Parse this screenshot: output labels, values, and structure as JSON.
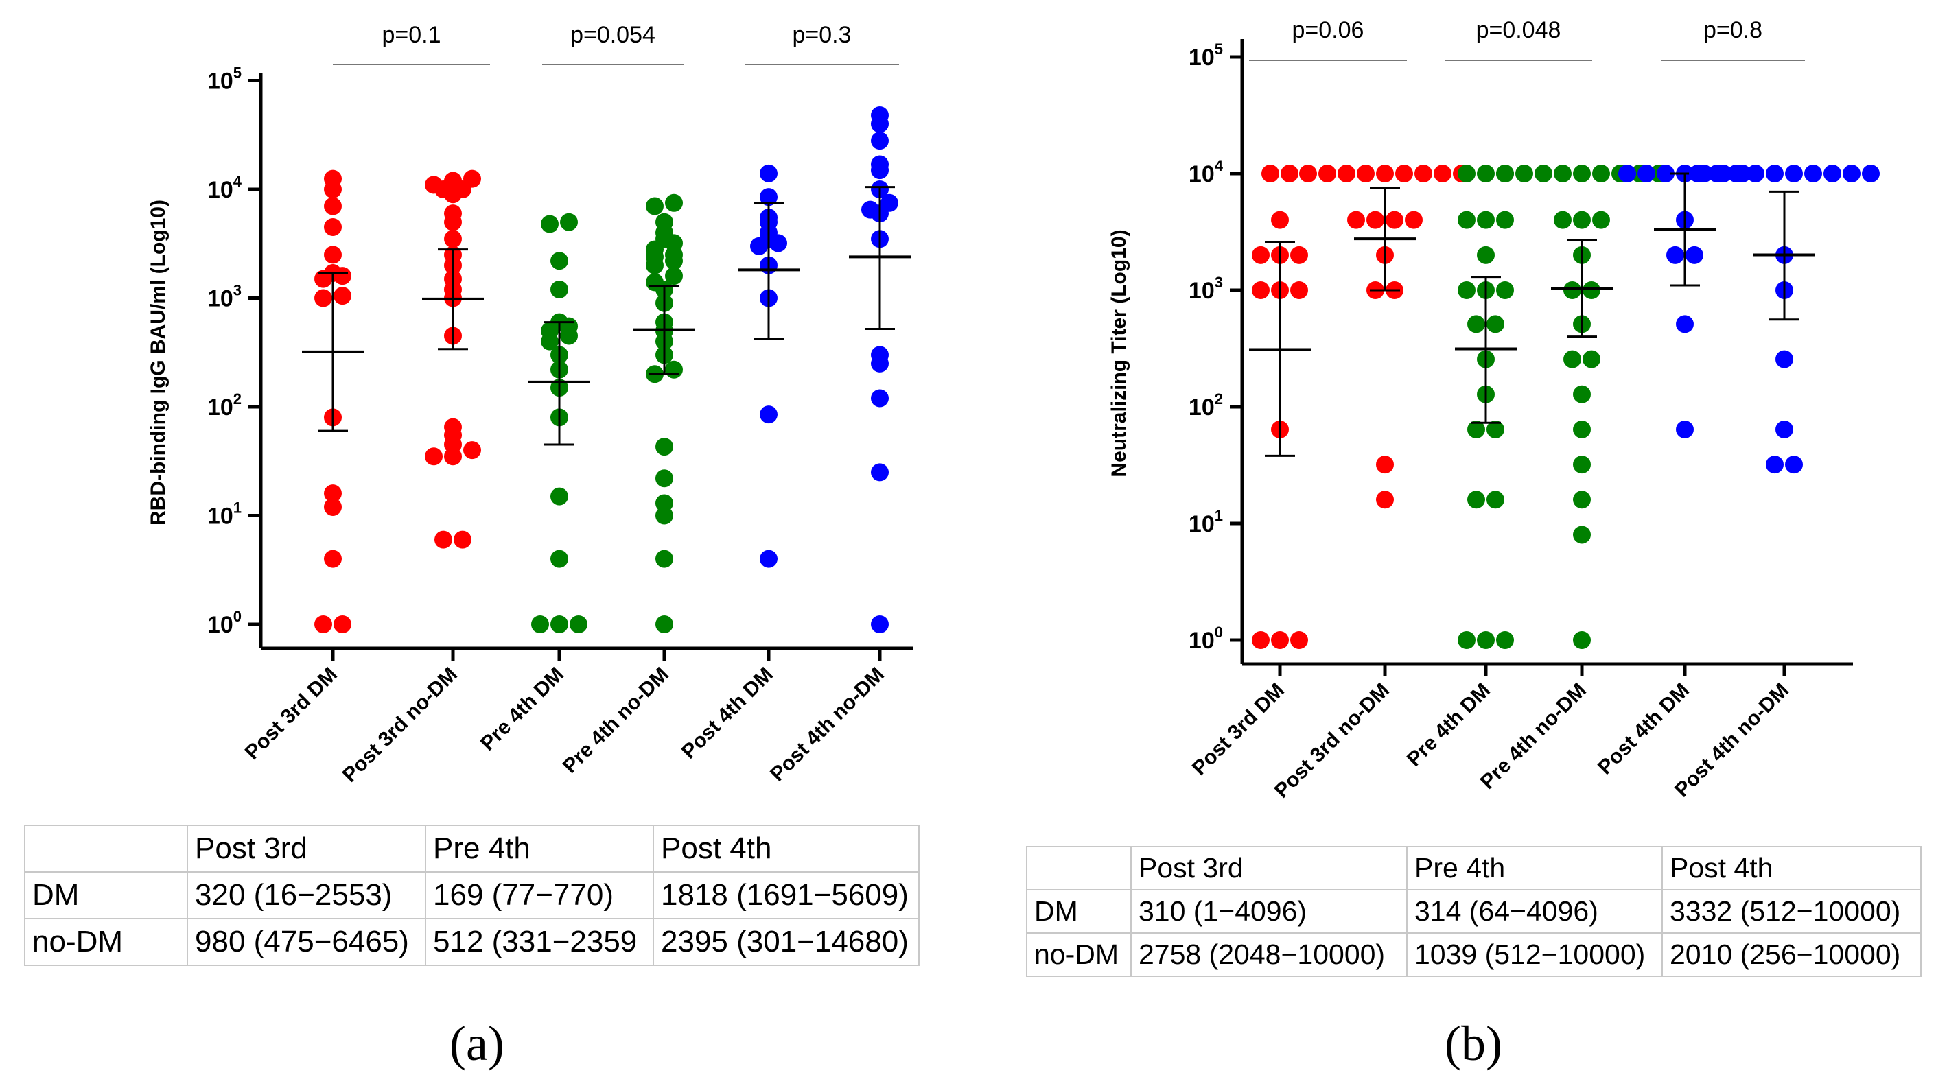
{
  "chart_data": [
    {
      "type": "scatter",
      "panel": "(a)",
      "ylabel": "RBD-binding IgG BAU/ml (Log10)",
      "yscale": "log10",
      "ylim": [
        1,
        100000
      ],
      "ytick_labels": [
        {
          "base": "10",
          "exp": "0"
        },
        {
          "base": "10",
          "exp": "1"
        },
        {
          "base": "10",
          "exp": "2"
        },
        {
          "base": "10",
          "exp": "3"
        },
        {
          "base": "10",
          "exp": "4"
        },
        {
          "base": "10",
          "exp": "5"
        }
      ],
      "categories": [
        "Post 3rd DM",
        "Post 3rd no-DM",
        "Pre 4th DM",
        "Pre 4th no-DM",
        "Post 4th DM",
        "Post 4th no-DM"
      ],
      "colors": [
        "#ff0000",
        "#ff0000",
        "#008000",
        "#008000",
        "#0000ff",
        "#0000ff"
      ],
      "series": [
        {
          "name": "Post 3rd DM",
          "median": 320,
          "lower": 60,
          "upper": 1700,
          "values": [
            1,
            1,
            4,
            12,
            16,
            80,
            1000,
            1050,
            1500,
            1600,
            1700,
            2500,
            4500,
            7000,
            10000,
            12500
          ]
        },
        {
          "name": "Post 3rd no-DM",
          "median": 980,
          "lower": 340,
          "upper": 2800,
          "values": [
            6,
            6,
            35,
            35,
            40,
            45,
            55,
            65,
            450,
            1000,
            1200,
            1500,
            2000,
            2500,
            3500,
            5000,
            6000,
            9000,
            10000,
            10000,
            11000,
            12000,
            12500
          ]
        },
        {
          "name": "Pre 4th DM",
          "median": 169,
          "lower": 45,
          "upper": 600,
          "values": [
            1,
            1,
            1,
            4,
            15,
            80,
            150,
            220,
            300,
            400,
            450,
            500,
            550,
            600,
            1200,
            2200,
            4800,
            5000
          ]
        },
        {
          "name": "Pre 4th no-DM",
          "median": 512,
          "lower": 200,
          "upper": 1300,
          "values": [
            1,
            4,
            10,
            13,
            22,
            43,
            200,
            220,
            300,
            400,
            500,
            600,
            900,
            1200,
            1400,
            1600,
            2000,
            2200,
            2400,
            2500,
            2800,
            3200,
            3500,
            4000,
            5000,
            7000,
            7500
          ]
        },
        {
          "name": "Post 4th DM",
          "median": 1818,
          "lower": 420,
          "upper": 7500,
          "values": [
            4,
            85,
            1000,
            2000,
            3000,
            3200,
            3500,
            4000,
            5000,
            5500,
            8500,
            14000
          ]
        },
        {
          "name": "Post 4th no-DM",
          "median": 2395,
          "lower": 520,
          "upper": 10500,
          "values": [
            1,
            25,
            120,
            250,
            300,
            3500,
            6000,
            6500,
            7500,
            10000,
            15000,
            17000,
            28000,
            40000,
            48000
          ]
        }
      ],
      "annotations": [
        {
          "text": "p=0.1",
          "between": [
            0,
            1
          ]
        },
        {
          "text": "p=0.054",
          "between": [
            2,
            3
          ]
        },
        {
          "text": "p=0.3",
          "between": [
            4,
            5
          ]
        }
      ]
    },
    {
      "type": "scatter",
      "panel": "(b)",
      "ylabel": "Neutralizing Titer (Log10)",
      "yscale": "log10",
      "ylim": [
        1,
        100000
      ],
      "ytick_labels": [
        {
          "base": "10",
          "exp": "0"
        },
        {
          "base": "10",
          "exp": "1"
        },
        {
          "base": "10",
          "exp": "2"
        },
        {
          "base": "10",
          "exp": "3"
        },
        {
          "base": "10",
          "exp": "4"
        },
        {
          "base": "10",
          "exp": "5"
        }
      ],
      "categories": [
        "Post 3rd DM",
        "Post 3rd no-DM",
        "Pre 4th DM",
        "Pre 4th no-DM",
        "Post 4th DM",
        "Post 4th no-DM"
      ],
      "colors": [
        "#ff0000",
        "#ff0000",
        "#008000",
        "#008000",
        "#0000ff",
        "#0000ff"
      ],
      "series": [
        {
          "name": "Post 3rd DM",
          "median": 310,
          "lower": 38,
          "upper": 2600,
          "values": [
            1,
            1,
            1,
            64,
            1000,
            1000,
            1000,
            2000,
            2000,
            2000,
            4000,
            10000,
            10000
          ]
        },
        {
          "name": "Post 3rd no-DM",
          "median": 2758,
          "lower": 1000,
          "upper": 7500,
          "values": [
            16,
            32,
            1000,
            1000,
            2000,
            4000,
            4000,
            4000,
            4000,
            10000,
            10000,
            10000,
            10000,
            10000,
            10000,
            10000,
            10000,
            10000
          ]
        },
        {
          "name": "Pre 4th DM",
          "median": 314,
          "lower": 73,
          "upper": 1300,
          "values": [
            1,
            1,
            1,
            16,
            16,
            64,
            64,
            128,
            256,
            512,
            512,
            1000,
            1000,
            1000,
            2000,
            4000,
            4000,
            4000,
            10000,
            10000,
            10000
          ]
        },
        {
          "name": "Pre 4th no-DM",
          "median": 1039,
          "lower": 400,
          "upper": 2700,
          "values": [
            1,
            8,
            16,
            32,
            64,
            128,
            256,
            256,
            512,
            1000,
            1000,
            2000,
            4000,
            4000,
            4000,
            10000,
            10000,
            10000,
            10000,
            10000,
            10000,
            10000,
            10000,
            10000
          ]
        },
        {
          "name": "Post 4th DM",
          "median": 3332,
          "lower": 1100,
          "upper": 10000,
          "values": [
            64,
            512,
            2000,
            2000,
            4000,
            10000,
            10000,
            10000,
            10000,
            10000,
            10000,
            10000
          ]
        },
        {
          "name": "Post 4th no-DM",
          "median": 2010,
          "lower": 560,
          "upper": 7000,
          "values": [
            32,
            32,
            64,
            256,
            1000,
            2000,
            10000,
            10000,
            10000,
            10000,
            10000,
            10000,
            10000,
            10000,
            10000,
            10000
          ]
        }
      ],
      "annotations": [
        {
          "text": "p=0.06",
          "between": [
            0,
            1
          ]
        },
        {
          "text": "p=0.048",
          "between": [
            2,
            3
          ]
        },
        {
          "text": "p=0.8",
          "between": [
            4,
            5
          ]
        }
      ]
    }
  ],
  "tables": {
    "a": {
      "header": [
        "",
        "Post 3rd",
        "Pre 4th",
        "Post 4th"
      ],
      "rows": [
        [
          "DM",
          "320 (16−2553)",
          "169 (77−770)",
          "1818 (1691−5609)"
        ],
        [
          "no-DM",
          "980 (475−6465)",
          "512 (331−2359",
          "2395 (301−14680)"
        ]
      ]
    },
    "b": {
      "header": [
        "",
        "Post 3rd",
        "Pre 4th",
        "Post 4th"
      ],
      "rows": [
        [
          "DM",
          "310 (1−4096)",
          "314 (64−4096)",
          "3332 (512−10000)"
        ],
        [
          "no-DM",
          "2758 (2048−10000)",
          "1039 (512−10000)",
          "2010 (256−10000)"
        ]
      ]
    }
  },
  "panel_labels": {
    "a": "(a)",
    "b": "(b)"
  }
}
